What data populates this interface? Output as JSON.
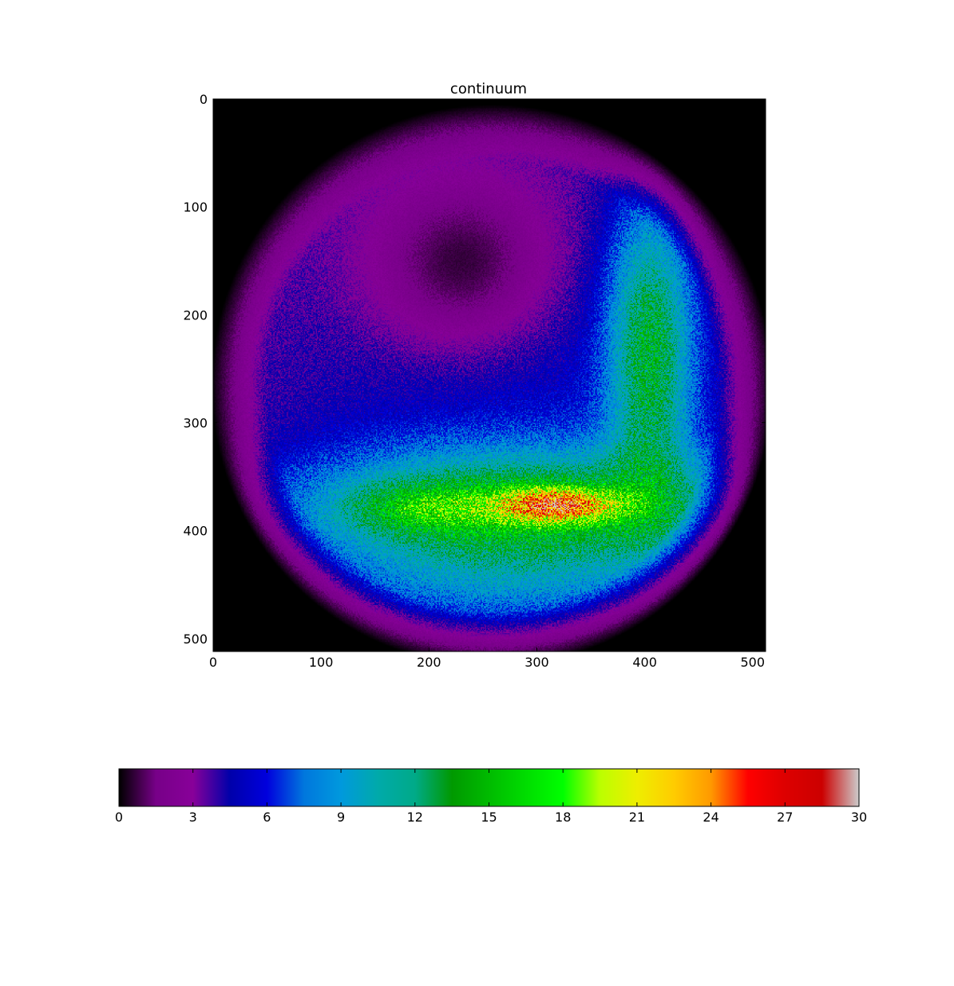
{
  "chart_data": {
    "type": "heatmap",
    "title": "continuum",
    "xlabel": "",
    "ylabel": "",
    "xlim": [
      0,
      512
    ],
    "ylim": [
      512,
      0
    ],
    "y_inverted": true,
    "grid": false,
    "x_ticks": [
      0,
      100,
      200,
      300,
      400,
      500
    ],
    "y_ticks": [
      0,
      100,
      200,
      300,
      400,
      500
    ],
    "image_shape": [
      512,
      512
    ],
    "color_range": [
      0,
      30
    ],
    "colormap": "nipy_spectral",
    "colormap_stops": [
      {
        "value": 0.0,
        "color": "#000000"
      },
      {
        "value": 0.05,
        "color": "#770088"
      },
      {
        "value": 0.1,
        "color": "#880099"
      },
      {
        "value": 0.15,
        "color": "#0000aa"
      },
      {
        "value": 0.2,
        "color": "#0000dd"
      },
      {
        "value": 0.25,
        "color": "#0077dd"
      },
      {
        "value": 0.3,
        "color": "#0099dd"
      },
      {
        "value": 0.35,
        "color": "#00aaaa"
      },
      {
        "value": 0.4,
        "color": "#00aa88"
      },
      {
        "value": 0.45,
        "color": "#009900"
      },
      {
        "value": 0.5,
        "color": "#00bb00"
      },
      {
        "value": 0.55,
        "color": "#00dd00"
      },
      {
        "value": 0.6,
        "color": "#00ff00"
      },
      {
        "value": 0.65,
        "color": "#bbff00"
      },
      {
        "value": 0.7,
        "color": "#eeee00"
      },
      {
        "value": 0.75,
        "color": "#ffcc00"
      },
      {
        "value": 0.8,
        "color": "#ff9900"
      },
      {
        "value": 0.85,
        "color": "#ff0000"
      },
      {
        "value": 0.9,
        "color": "#dd0000"
      },
      {
        "value": 0.95,
        "color": "#cc0000"
      },
      {
        "value": 1.0,
        "color": "#cccccc"
      }
    ],
    "intensity_model": {
      "disk_center": [
        258,
        265
      ],
      "disk_radius": 255,
      "disk_level": 3.0,
      "features": [
        {
          "name": "dark core",
          "center": [
            232,
            158
          ],
          "sigma": [
            65,
            62
          ],
          "amplitude": -4.0
        },
        {
          "name": "right arc",
          "center": [
            405,
            230
          ],
          "sigma": [
            28,
            95
          ],
          "amplitude": 9.0
        },
        {
          "name": "lower band",
          "center": [
            290,
            380
          ],
          "sigma": [
            150,
            38
          ],
          "amplitude": 10.0
        },
        {
          "name": "left lobe",
          "center": [
            190,
            378
          ],
          "sigma": [
            45,
            16
          ],
          "amplitude": 4.0
        },
        {
          "name": "peak",
          "center": [
            318,
            376
          ],
          "sigma": [
            38,
            11
          ],
          "amplitude": 12.0
        },
        {
          "name": "bottom glow",
          "center": [
            270,
            450
          ],
          "sigma": [
            120,
            30
          ],
          "amplitude": 3.0
        },
        {
          "name": "inner ring",
          "center": [
            280,
            300
          ],
          "sigma": [
            170,
            170
          ],
          "amplitude": 2.5
        }
      ],
      "noise_level": 0.22
    },
    "colorbar": {
      "orientation": "horizontal",
      "ticks": [
        0,
        3,
        6,
        9,
        12,
        15,
        18,
        21,
        24,
        27,
        30
      ]
    }
  }
}
